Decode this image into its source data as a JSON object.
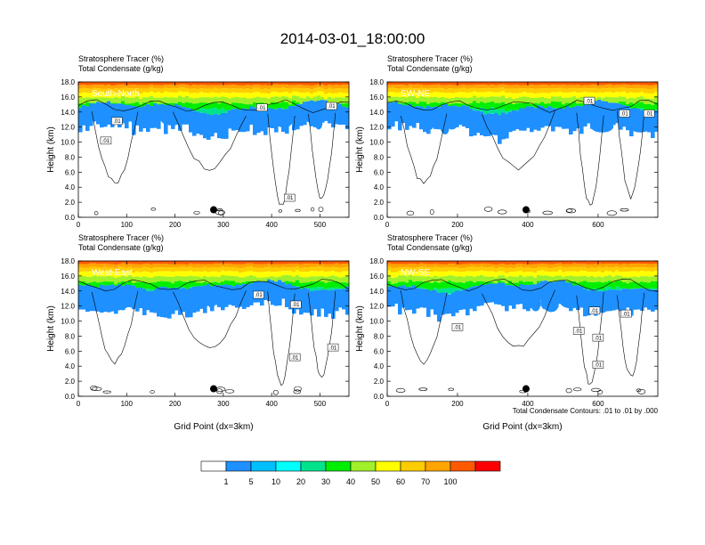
{
  "title": "2014-03-01_18:00:00",
  "footnote": "Total Condensate Contours: .01 to .01 by .000",
  "contour_label": ".01",
  "chart_data": {
    "type": "heatmap",
    "title": "2014-03-01_18:00:00",
    "variables": [
      "Stratosphere Tracer (%)",
      "Total Condensate (g/kg)"
    ],
    "ylabel": "Height (km)",
    "xlabel": "Grid Point (dx=3km)",
    "colorbar": {
      "unit": "%",
      "colors": [
        "#ffffff",
        "#1e90ff",
        "#00bfff",
        "#00ffff",
        "#00e38c",
        "#00ee00",
        "#a0f02a",
        "#ffff00",
        "#ffcc00",
        "#ffa500",
        "#ff5a00",
        "#ff0000"
      ],
      "labels": [
        "1",
        "5",
        "10",
        "20",
        "30",
        "40",
        "50",
        "60",
        "70",
        "100"
      ]
    },
    "panels": [
      {
        "id": "south-north",
        "section": "South-North",
        "line1": "Stratosphere Tracer   (%)",
        "line2": "Total Condensate   (g/kg)",
        "xmax": 560,
        "xticks": [
          0,
          100,
          200,
          300,
          400,
          500
        ],
        "yticks": [
          "0.0",
          "2.0",
          "4.0",
          "6.0",
          "8.0",
          "10.0",
          "12.0",
          "14.0",
          "16.0",
          "18.0"
        ],
        "ylim": [
          0,
          18
        ],
        "marker": {
          "x": 280,
          "y": 1.0
        },
        "contour_labels": [
          {
            "x": 57,
            "y": 10.2
          },
          {
            "x": 80,
            "y": 12.8
          },
          {
            "x": 380,
            "y": 14.6
          },
          {
            "x": 524,
            "y": 14.8
          },
          {
            "x": 437,
            "y": 2.6
          }
        ]
      },
      {
        "id": "sw-ne",
        "section": "SW-NE",
        "line1": "Stratosphere Tracer   (%)",
        "line2": "Total Condensate   (g/kg)",
        "xmax": 770,
        "xticks": [
          0,
          200,
          400,
          600
        ],
        "yticks": [
          "0.0",
          "2.0",
          "4.0",
          "6.0",
          "8.0",
          "10.0",
          "12.0",
          "14.0",
          "16.0",
          "18.0"
        ],
        "ylim": [
          0,
          18
        ],
        "marker": {
          "x": 395,
          "y": 1.0
        },
        "contour_labels": [
          {
            "x": 575,
            "y": 15.5
          },
          {
            "x": 675,
            "y": 13.8
          },
          {
            "x": 745,
            "y": 13.8
          }
        ]
      },
      {
        "id": "west-east",
        "section": "West-East",
        "line1": "Stratosphere Tracer   (%)",
        "line2": "Total Condensate   (g/kg)",
        "xmax": 560,
        "xticks": [
          0,
          100,
          200,
          300,
          400,
          500
        ],
        "yticks": [
          "0.0",
          "2.0",
          "4.0",
          "6.0",
          "8.0",
          "10.0",
          "12.0",
          "14.0",
          "16.0",
          "18.0"
        ],
        "ylim": [
          0,
          18
        ],
        "marker": {
          "x": 280,
          "y": 1.0
        },
        "contour_labels": [
          {
            "x": 373,
            "y": 13.5
          },
          {
            "x": 450,
            "y": 12.2
          },
          {
            "x": 448,
            "y": 5.2
          },
          {
            "x": 527,
            "y": 6.5
          }
        ]
      },
      {
        "id": "nw-se",
        "section": "NW-SE",
        "line1": "Stratosphere Tracer   (%)",
        "line2": "Total Condensate   (g/kg)",
        "xmax": 770,
        "xticks": [
          0,
          200,
          400,
          600
        ],
        "yticks": [
          "0.0",
          "2.0",
          "4.0",
          "6.0",
          "8.0",
          "10.0",
          "12.0",
          "14.0",
          "16.0",
          "18.0"
        ],
        "ylim": [
          0,
          18
        ],
        "marker": {
          "x": 395,
          "y": 1.0
        },
        "contour_labels": [
          {
            "x": 200,
            "y": 9.2
          },
          {
            "x": 545,
            "y": 8.7
          },
          {
            "x": 590,
            "y": 11.4
          },
          {
            "x": 600,
            "y": 7.8
          },
          {
            "x": 680,
            "y": 11.0
          },
          {
            "x": 600,
            "y": 4.2
          }
        ]
      }
    ]
  }
}
